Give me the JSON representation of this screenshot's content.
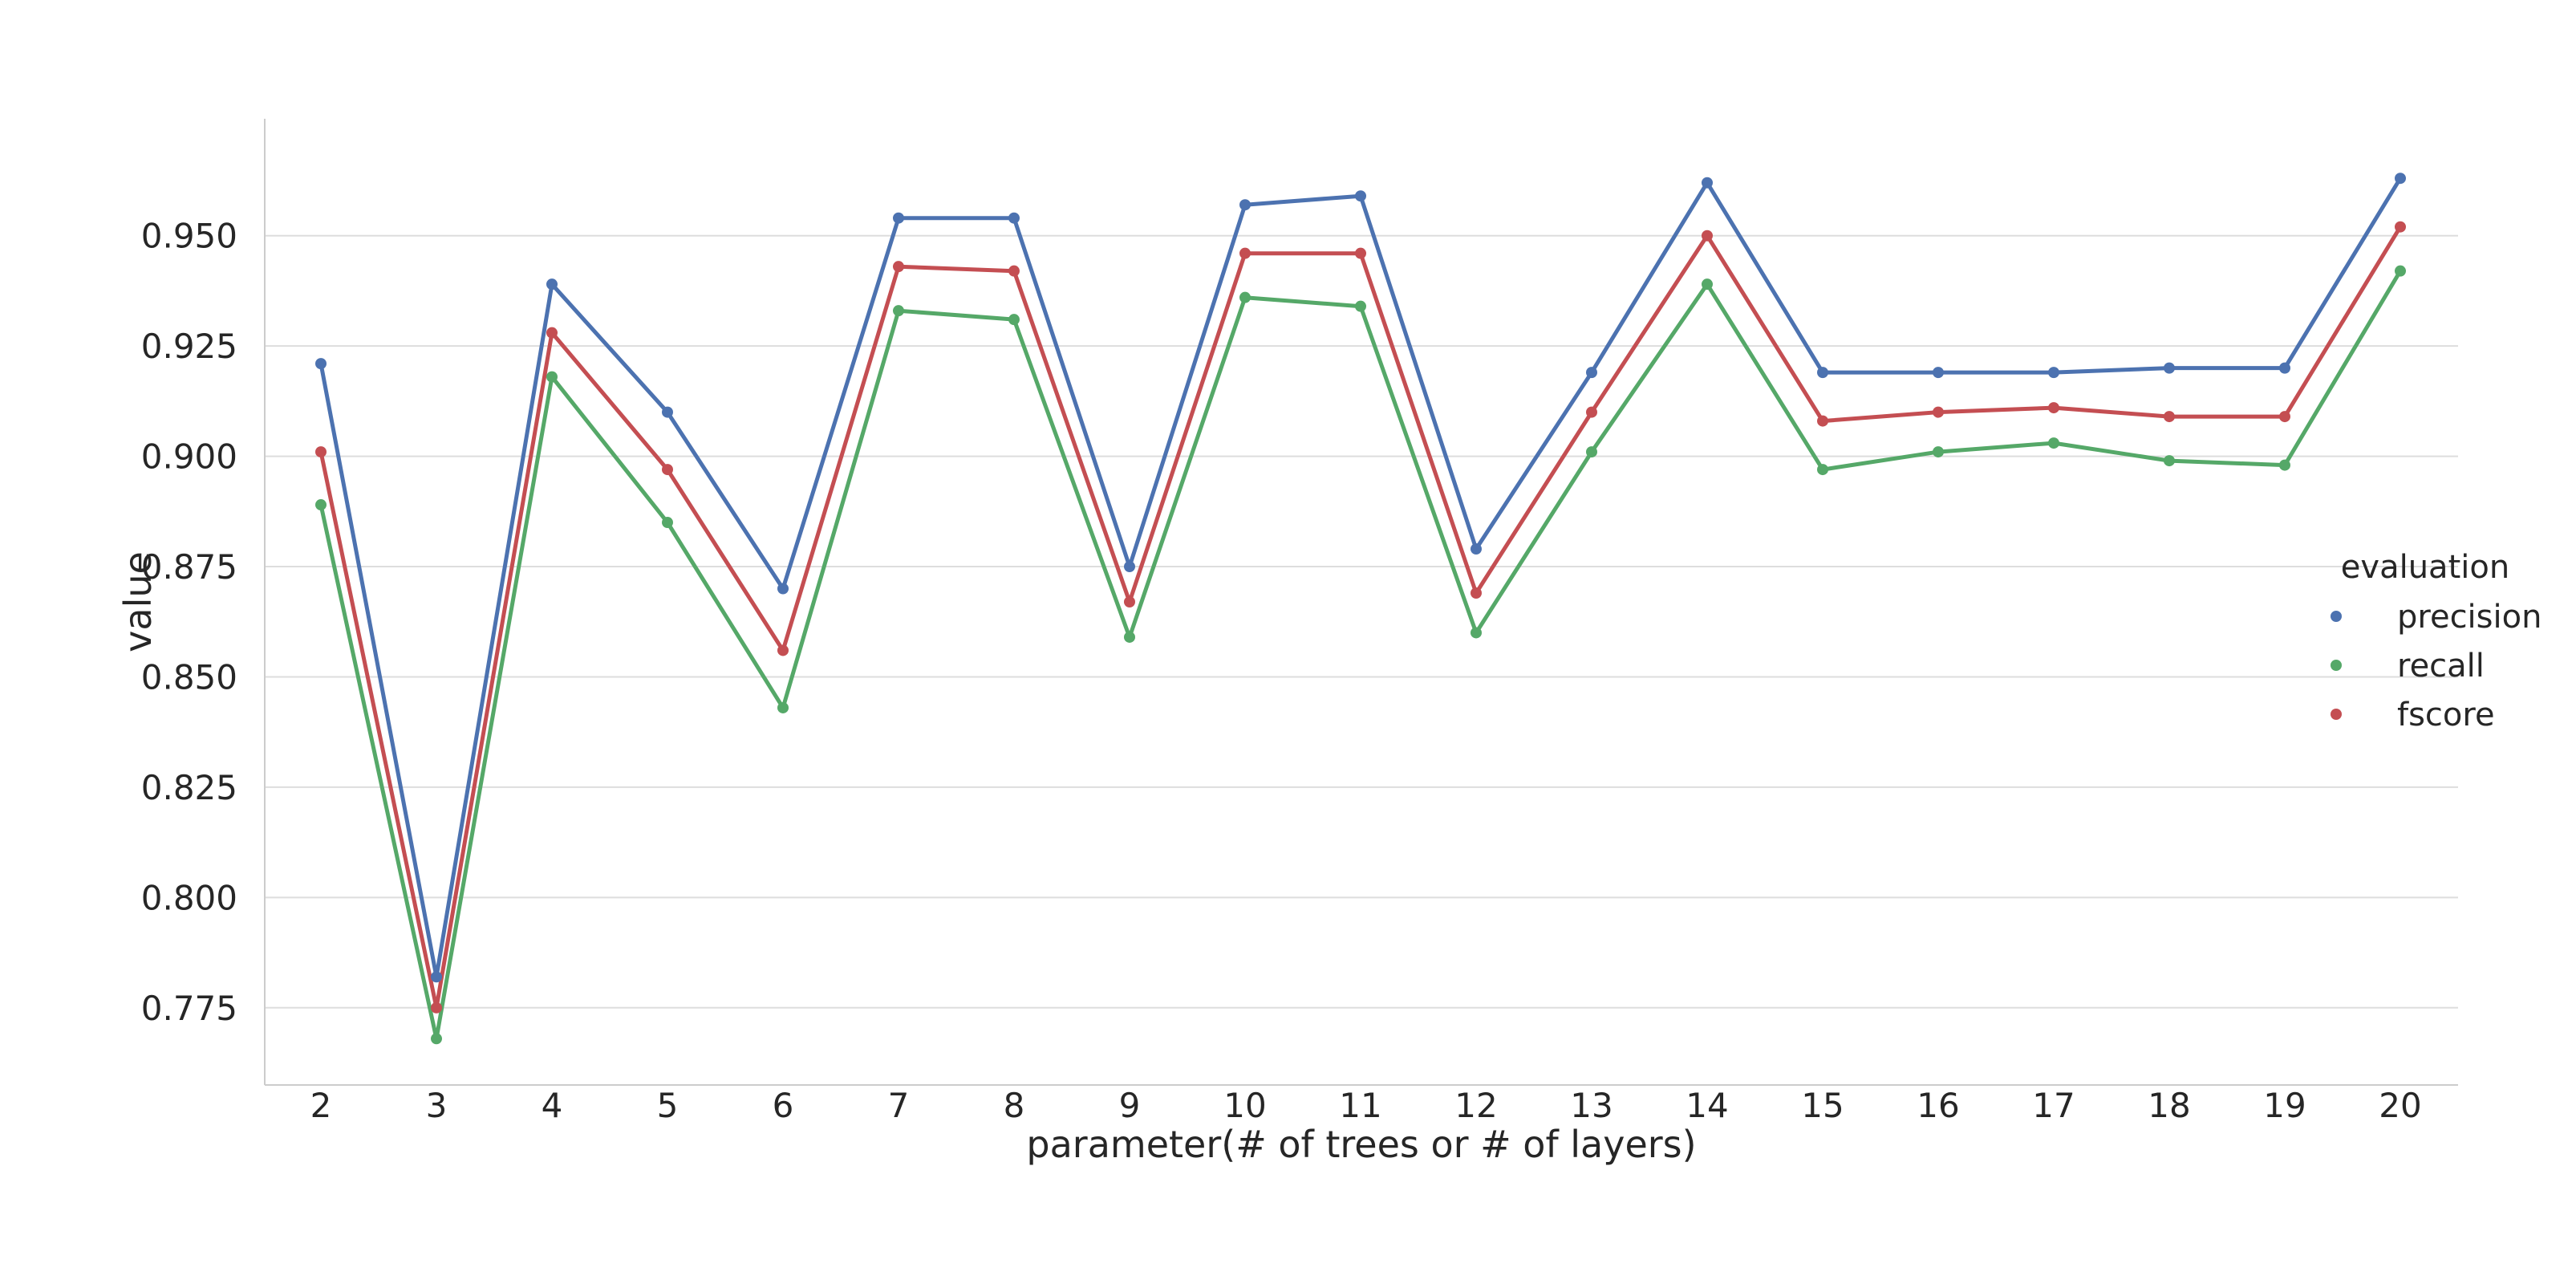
{
  "chart_data": {
    "type": "line",
    "title": "",
    "xlabel": "parameter(# of trees or # of layers)",
    "ylabel": "value",
    "x": [
      2,
      3,
      4,
      5,
      6,
      7,
      8,
      9,
      10,
      11,
      12,
      13,
      14,
      15,
      16,
      17,
      18,
      19,
      20
    ],
    "ylim": [
      0.7575,
      0.9765
    ],
    "yticks": [
      0.775,
      0.8,
      0.825,
      0.85,
      0.875,
      0.9,
      0.925,
      0.95
    ],
    "ytick_labels": [
      "0.775",
      "0.800",
      "0.825",
      "0.850",
      "0.875",
      "0.900",
      "0.925",
      "0.950"
    ],
    "grid": "horizontal",
    "legend_title": "evaluation",
    "legend_position": "right",
    "series": [
      {
        "name": "precision",
        "color": "#4c72b0",
        "values": [
          0.921,
          0.782,
          0.939,
          0.91,
          0.87,
          0.954,
          0.954,
          0.875,
          0.957,
          0.959,
          0.879,
          0.919,
          0.962,
          0.919,
          0.919,
          0.919,
          0.92,
          0.92,
          0.963
        ]
      },
      {
        "name": "recall",
        "color": "#55a868",
        "values": [
          0.889,
          0.768,
          0.918,
          0.885,
          0.843,
          0.933,
          0.931,
          0.859,
          0.936,
          0.934,
          0.86,
          0.901,
          0.939,
          0.897,
          0.901,
          0.903,
          0.899,
          0.898,
          0.942
        ]
      },
      {
        "name": "fscore",
        "color": "#c44e52",
        "values": [
          0.901,
          0.775,
          0.928,
          0.897,
          0.856,
          0.943,
          0.942,
          0.867,
          0.946,
          0.946,
          0.869,
          0.91,
          0.95,
          0.908,
          0.91,
          0.911,
          0.909,
          0.909,
          0.952
        ]
      }
    ]
  }
}
